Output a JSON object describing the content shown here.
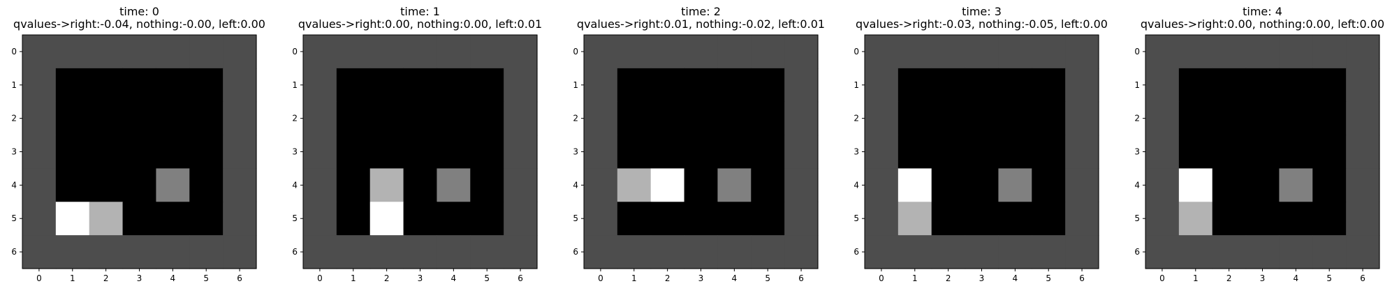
{
  "chart_data": [
    {
      "type": "heatmap",
      "title": [
        "time: 0",
        "qvalues->right:-0.04, nothing:-0.00, left:0.00"
      ],
      "x_ticks": [
        "0",
        "1",
        "2",
        "3",
        "4",
        "5",
        "6"
      ],
      "y_ticks": [
        "0",
        "1",
        "2",
        "3",
        "4",
        "5",
        "6"
      ],
      "xlim": [
        -0.5,
        6.5
      ],
      "ylim": [
        6.5,
        -0.5
      ],
      "grid": [
        [
          0.3,
          0.3,
          0.3,
          0.3,
          0.3,
          0.3,
          0.3
        ],
        [
          0.3,
          0,
          0,
          0,
          0,
          0,
          0.3
        ],
        [
          0.3,
          0,
          0,
          0,
          0,
          0,
          0.3
        ],
        [
          0.3,
          0,
          0,
          0,
          0,
          0,
          0.3
        ],
        [
          0.3,
          0,
          0,
          0,
          0.5,
          0,
          0.3
        ],
        [
          0.3,
          1,
          0.7,
          0,
          0,
          0,
          0.3
        ],
        [
          0.3,
          0.3,
          0.3,
          0.3,
          0.3,
          0.3,
          0.3
        ]
      ]
    },
    {
      "type": "heatmap",
      "title": [
        "time: 1",
        "qvalues->right:0.00, nothing:0.00, left:0.01"
      ],
      "x_ticks": [
        "0",
        "1",
        "2",
        "3",
        "4",
        "5",
        "6"
      ],
      "y_ticks": [
        "0",
        "1",
        "2",
        "3",
        "4",
        "5",
        "6"
      ],
      "xlim": [
        -0.5,
        6.5
      ],
      "ylim": [
        6.5,
        -0.5
      ],
      "grid": [
        [
          0.3,
          0.3,
          0.3,
          0.3,
          0.3,
          0.3,
          0.3
        ],
        [
          0.3,
          0,
          0,
          0,
          0,
          0,
          0.3
        ],
        [
          0.3,
          0,
          0,
          0,
          0,
          0,
          0.3
        ],
        [
          0.3,
          0,
          0,
          0,
          0,
          0,
          0.3
        ],
        [
          0.3,
          0,
          0.7,
          0,
          0.5,
          0,
          0.3
        ],
        [
          0.3,
          0,
          1,
          0,
          0,
          0,
          0.3
        ],
        [
          0.3,
          0.3,
          0.3,
          0.3,
          0.3,
          0.3,
          0.3
        ]
      ]
    },
    {
      "type": "heatmap",
      "title": [
        "time: 2",
        "qvalues->right:0.01, nothing:-0.02, left:0.01"
      ],
      "x_ticks": [
        "0",
        "1",
        "2",
        "3",
        "4",
        "5",
        "6"
      ],
      "y_ticks": [
        "0",
        "1",
        "2",
        "3",
        "4",
        "5",
        "6"
      ],
      "xlim": [
        -0.5,
        6.5
      ],
      "ylim": [
        6.5,
        -0.5
      ],
      "grid": [
        [
          0.3,
          0.3,
          0.3,
          0.3,
          0.3,
          0.3,
          0.3
        ],
        [
          0.3,
          0,
          0,
          0,
          0,
          0,
          0.3
        ],
        [
          0.3,
          0,
          0,
          0,
          0,
          0,
          0.3
        ],
        [
          0.3,
          0,
          0,
          0,
          0,
          0,
          0.3
        ],
        [
          0.3,
          0.7,
          1,
          0,
          0.5,
          0,
          0.3
        ],
        [
          0.3,
          0,
          0,
          0,
          0,
          0,
          0.3
        ],
        [
          0.3,
          0.3,
          0.3,
          0.3,
          0.3,
          0.3,
          0.3
        ]
      ]
    },
    {
      "type": "heatmap",
      "title": [
        "time: 3",
        "qvalues->right:-0.03, nothing:-0.05, left:0.00"
      ],
      "x_ticks": [
        "0",
        "1",
        "2",
        "3",
        "4",
        "5",
        "6"
      ],
      "y_ticks": [
        "0",
        "1",
        "2",
        "3",
        "4",
        "5",
        "6"
      ],
      "xlim": [
        -0.5,
        6.5
      ],
      "ylim": [
        6.5,
        -0.5
      ],
      "grid": [
        [
          0.3,
          0.3,
          0.3,
          0.3,
          0.3,
          0.3,
          0.3
        ],
        [
          0.3,
          0,
          0,
          0,
          0,
          0,
          0.3
        ],
        [
          0.3,
          0,
          0,
          0,
          0,
          0,
          0.3
        ],
        [
          0.3,
          0,
          0,
          0,
          0,
          0,
          0.3
        ],
        [
          0.3,
          1,
          0,
          0,
          0.5,
          0,
          0.3
        ],
        [
          0.3,
          0.7,
          0,
          0,
          0,
          0,
          0.3
        ],
        [
          0.3,
          0.3,
          0.3,
          0.3,
          0.3,
          0.3,
          0.3
        ]
      ]
    },
    {
      "type": "heatmap",
      "title": [
        "time: 4",
        "qvalues->right:0.00, nothing:0.00, left:0.00"
      ],
      "x_ticks": [
        "0",
        "1",
        "2",
        "3",
        "4",
        "5",
        "6"
      ],
      "y_ticks": [
        "0",
        "1",
        "2",
        "3",
        "4",
        "5",
        "6"
      ],
      "xlim": [
        -0.5,
        6.5
      ],
      "ylim": [
        6.5,
        -0.5
      ],
      "grid": [
        [
          0.3,
          0.3,
          0.3,
          0.3,
          0.3,
          0.3,
          0.3
        ],
        [
          0.3,
          0,
          0,
          0,
          0,
          0,
          0.3
        ],
        [
          0.3,
          0,
          0,
          0,
          0,
          0,
          0.3
        ],
        [
          0.3,
          0,
          0,
          0,
          0,
          0,
          0.3
        ],
        [
          0.3,
          1,
          0,
          0,
          0.5,
          0,
          0.3
        ],
        [
          0.3,
          0.7,
          0,
          0,
          0,
          0,
          0.3
        ],
        [
          0.3,
          0.3,
          0.3,
          0.3,
          0.3,
          0.3,
          0.3
        ]
      ]
    }
  ]
}
